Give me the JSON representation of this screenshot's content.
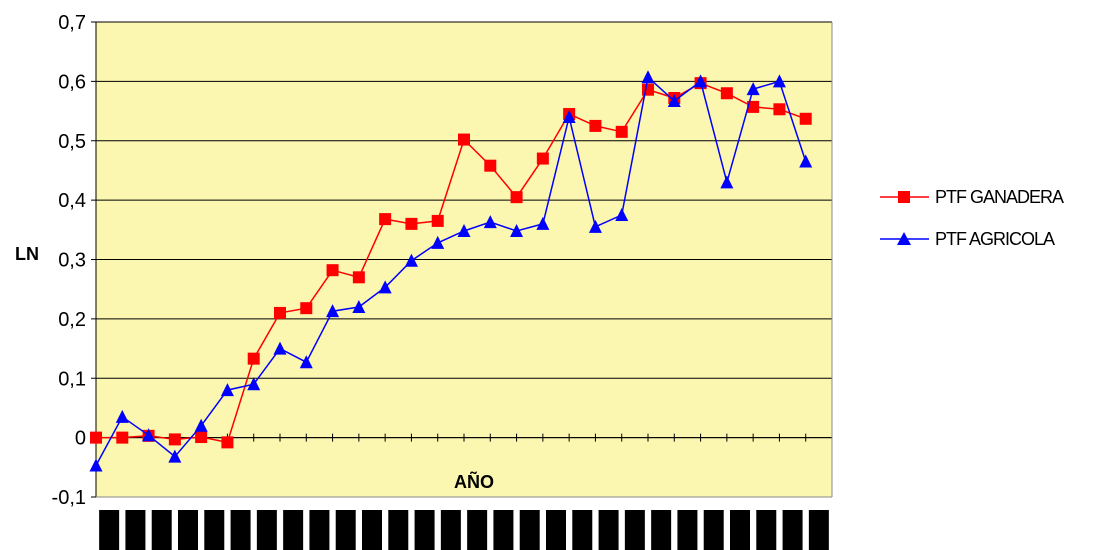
{
  "chart_data": {
    "type": "line",
    "xlabel": "AÑO",
    "ylabel": "LN",
    "ylim": [
      -0.1,
      0.7
    ],
    "y_ticks": [
      "-0,1",
      "0",
      "0,1",
      "0,2",
      "0,3",
      "0,4",
      "0,5",
      "0,6",
      "0,7"
    ],
    "grid": "horizontal",
    "plot_background": "#fbf6b0",
    "legend_position": "right",
    "x_count": 28,
    "series": [
      {
        "name": "PTF GANADERA",
        "color": "#ff0000",
        "marker": "square",
        "values": [
          0.0,
          0.0,
          0.003,
          -0.003,
          0.001,
          -0.008,
          0.133,
          0.21,
          0.218,
          0.282,
          0.27,
          0.368,
          0.36,
          0.365,
          0.502,
          0.458,
          0.405,
          0.47,
          0.545,
          0.525,
          0.515,
          0.586,
          0.572,
          0.597,
          0.58,
          0.557,
          0.553,
          0.537
        ]
      },
      {
        "name": "PTF AGRICOLA",
        "color": "#0000ff",
        "marker": "triangle",
        "values": [
          -0.047,
          0.035,
          0.004,
          -0.032,
          0.02,
          0.08,
          0.09,
          0.15,
          0.127,
          0.213,
          0.22,
          0.253,
          0.298,
          0.328,
          0.348,
          0.363,
          0.348,
          0.36,
          0.54,
          0.355,
          0.375,
          0.607,
          0.567,
          0.6,
          0.43,
          0.587,
          0.6,
          0.465
        ]
      }
    ]
  }
}
